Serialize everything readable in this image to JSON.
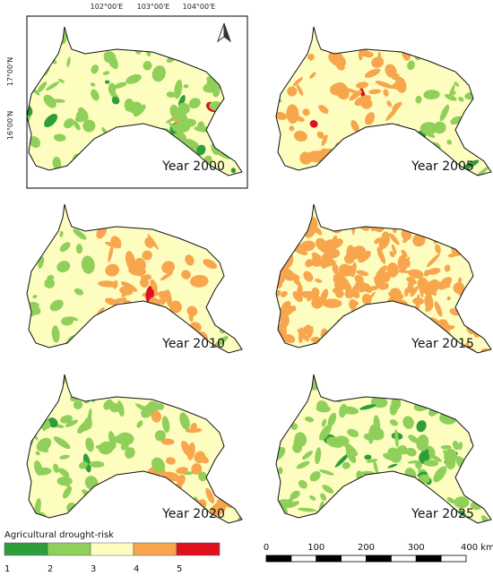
{
  "map": {
    "coordinates": {
      "longitude": [
        "102°00'E",
        "103°00'E",
        "104°00'E"
      ],
      "latitude": [
        "17°00'N",
        "16°00'N"
      ]
    },
    "panels": [
      {
        "label": "Year 2000"
      },
      {
        "label": "Year 2005"
      },
      {
        "label": "Year 2010"
      },
      {
        "label": "Year 2015"
      },
      {
        "label": "Year 2020"
      },
      {
        "label": "Year 2025"
      }
    ],
    "legend": {
      "title": "Agricultural drought-risk",
      "classes": [
        {
          "value": 1,
          "color": "#2e9e3a"
        },
        {
          "value": 2,
          "color": "#8fcf5a"
        },
        {
          "value": 3,
          "color": "#fdfdc0"
        },
        {
          "value": 4,
          "color": "#f7a64d"
        },
        {
          "value": 5,
          "color": "#e0101e"
        }
      ]
    },
    "scale_bar": {
      "labels": [
        "0",
        "100",
        "200",
        "300",
        "400 km"
      ]
    }
  }
}
